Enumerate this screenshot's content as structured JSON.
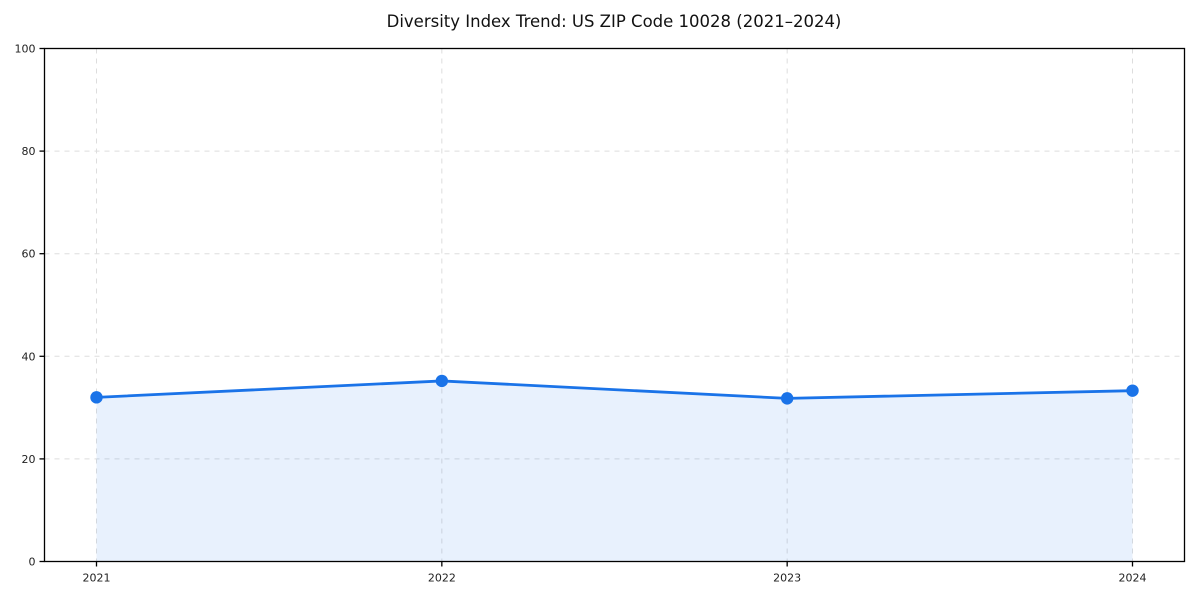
{
  "chart_data": {
    "type": "area",
    "title": "Diversity Index Trend: US ZIP Code 10028 (2021–2024)",
    "categories": [
      "2021",
      "2022",
      "2023",
      "2024"
    ],
    "series": [
      {
        "name": "Diversity Index",
        "values": [
          32.0,
          35.2,
          31.8,
          33.3
        ]
      }
    ],
    "xlabel": "",
    "ylabel": "",
    "ylim": [
      0,
      100
    ],
    "yticks": [
      0,
      20,
      40,
      60,
      80,
      100
    ],
    "grid": true,
    "grid_style": "dashed",
    "legend_position": "none",
    "line_color": "#1a73e8",
    "marker_color": "#1a73e8",
    "fill_color": "rgba(26, 115, 232, 0.10)",
    "grid_color": "#dddddd",
    "axis_color": "#000000",
    "tick_label_color": "#222222"
  }
}
